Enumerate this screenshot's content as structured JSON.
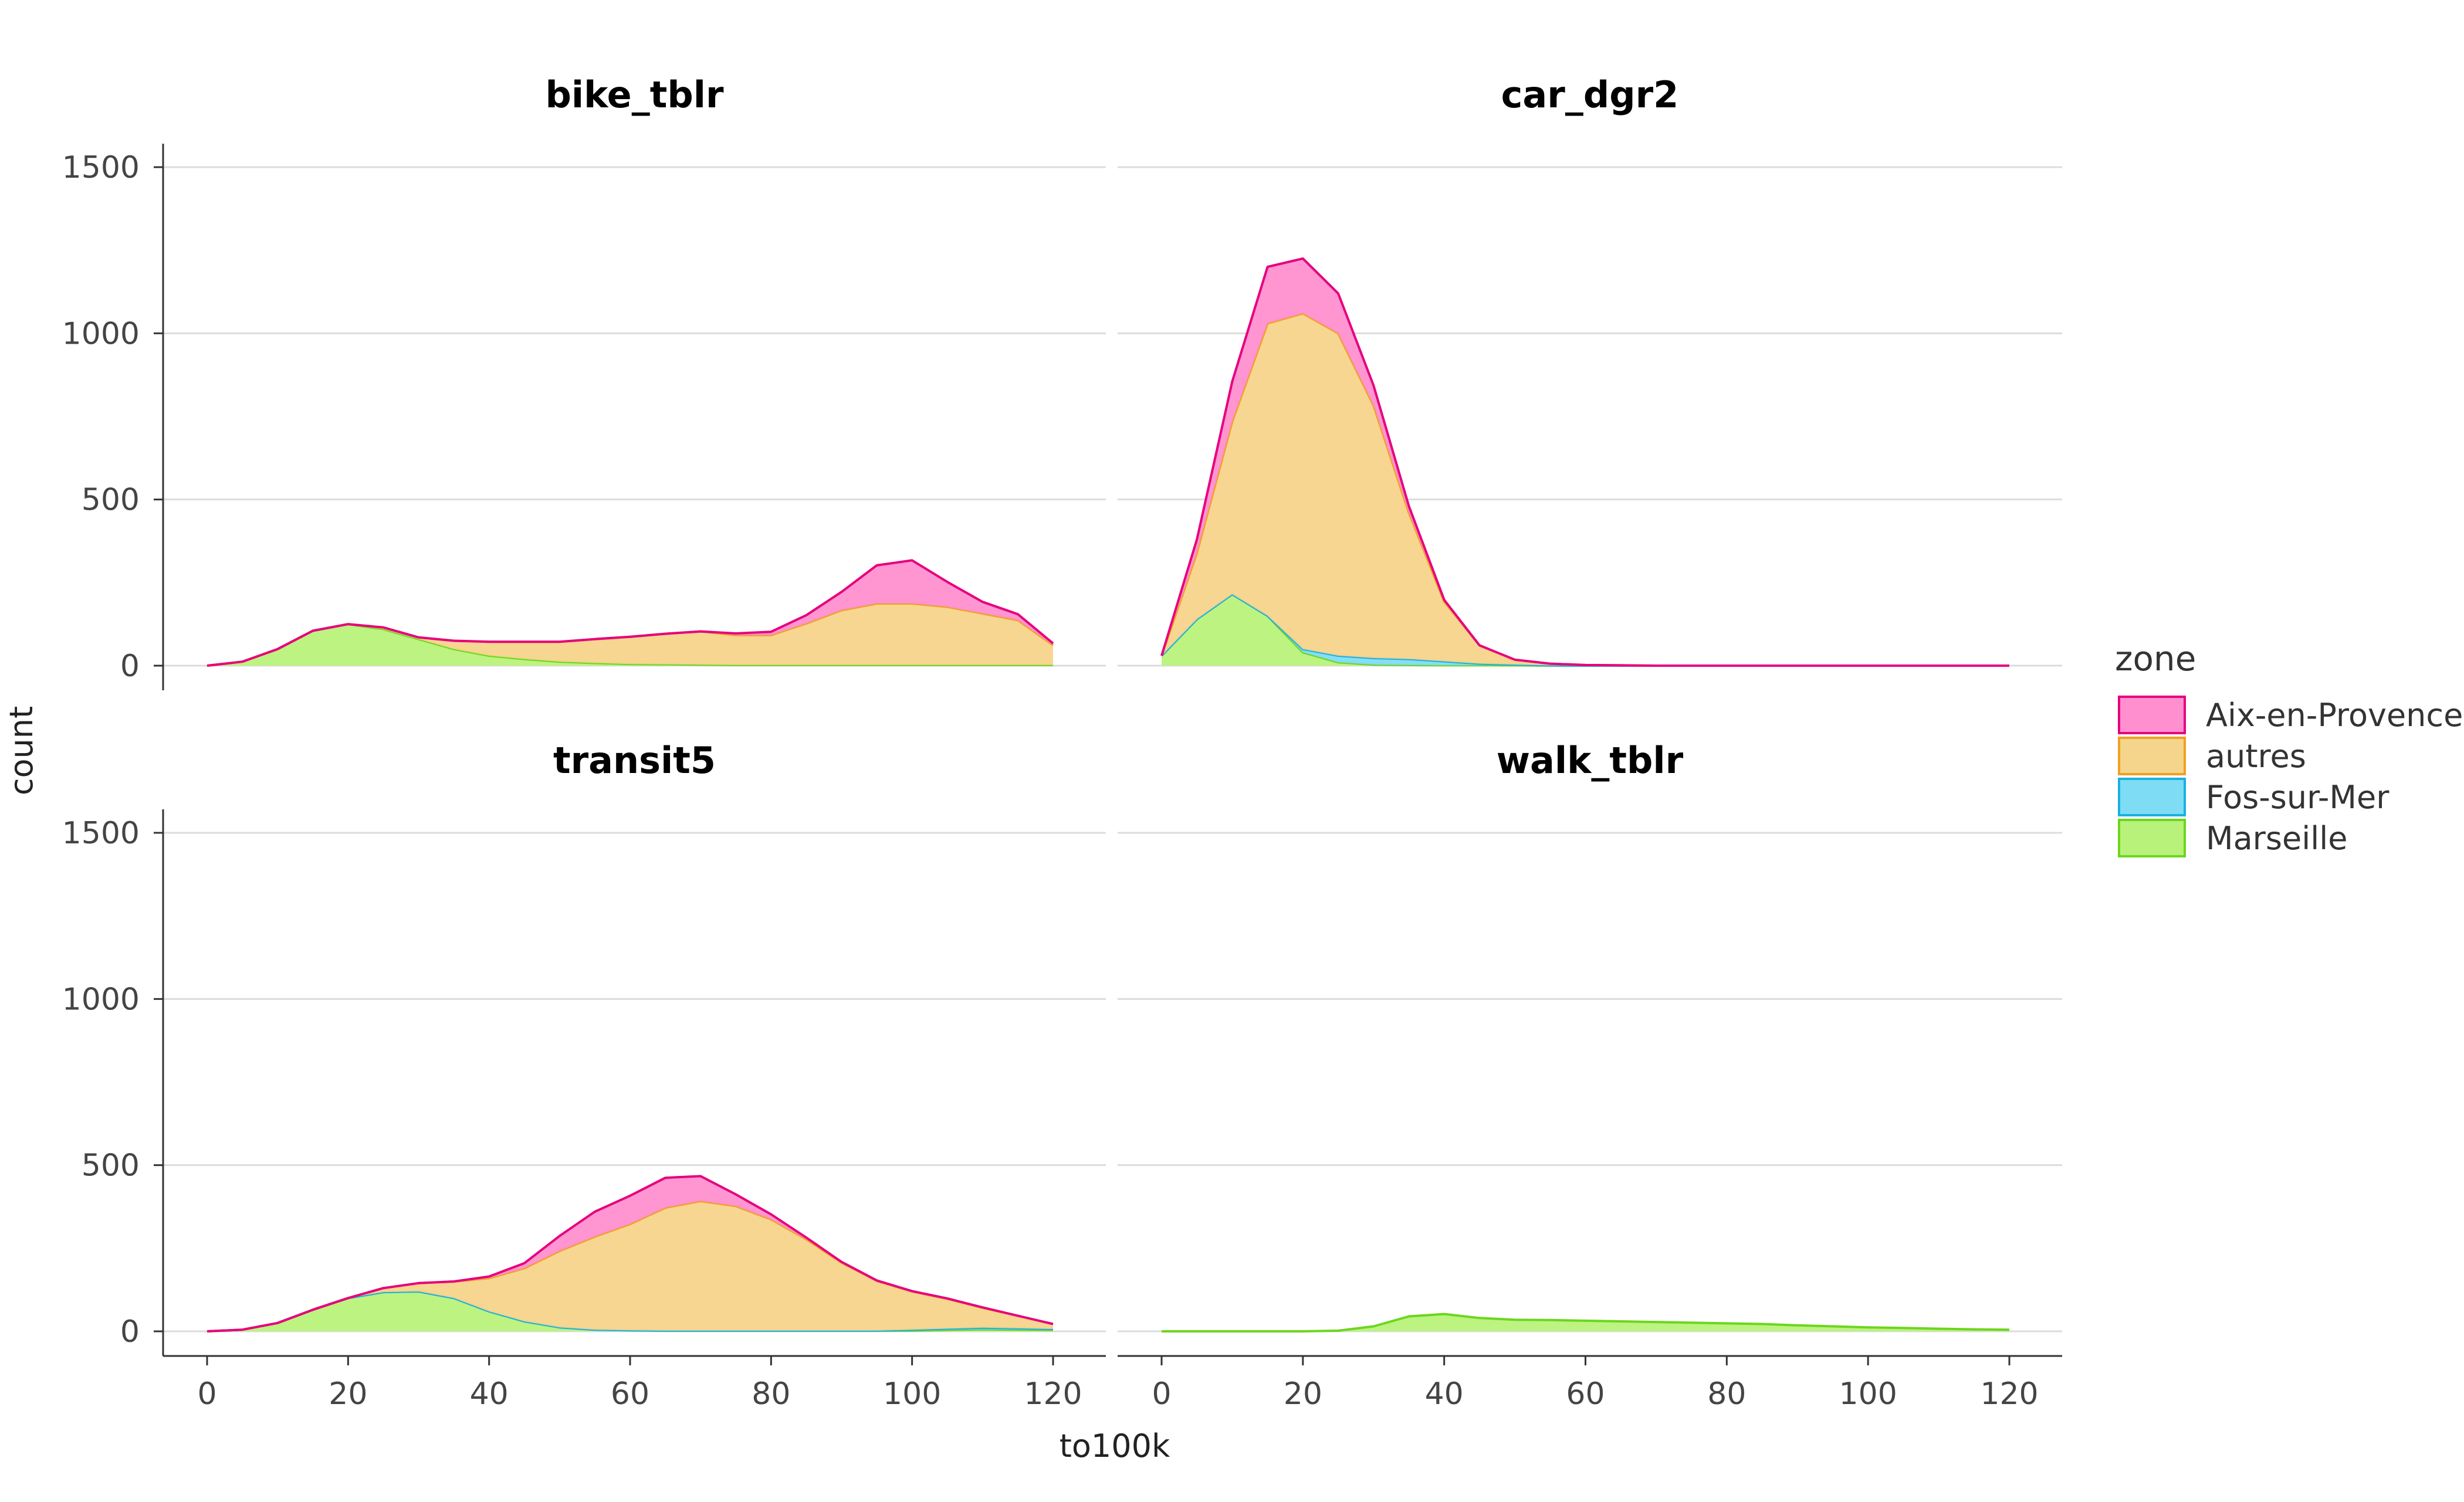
{
  "chart_data": {
    "type": "area",
    "stacked": true,
    "facet_by": "mode",
    "xlabel": "to100k",
    "ylabel": "count",
    "xlim": [
      0,
      120
    ],
    "ylim": [
      0,
      1500
    ],
    "x_ticks": [
      0,
      20,
      40,
      60,
      80,
      100,
      120
    ],
    "y_ticks": [
      0,
      500,
      1000,
      1500
    ],
    "grid": "horizontal",
    "legend": {
      "title": "zone",
      "position": "right",
      "entries": [
        "Aix-en-Provence",
        "autres",
        "Fos-sur-Mer",
        "Marseille"
      ]
    },
    "colors": {
      "Aix-en-Provence": {
        "fill": "#ff8fcf",
        "line": "#e6007e"
      },
      "autres": {
        "fill": "#f5d48b",
        "line": "#f0a020"
      },
      "Fos-sur-Mer": {
        "fill": "#7fdcf5",
        "line": "#1ab0e0"
      },
      "Marseille": {
        "fill": "#b8f27a",
        "line": "#6cd61e"
      }
    },
    "stack_order_bottom_to_top": [
      "Marseille",
      "Fos-sur-Mer",
      "autres",
      "Aix-en-Provence"
    ],
    "x": [
      0,
      5,
      10,
      15,
      20,
      25,
      30,
      35,
      40,
      45,
      50,
      55,
      60,
      65,
      70,
      75,
      80,
      85,
      90,
      95,
      100,
      105,
      110,
      115,
      120
    ],
    "panels": [
      {
        "title": "bike_tblr",
        "series": [
          {
            "name": "Marseille",
            "values": [
              0,
              12,
              50,
              105,
              125,
              110,
              80,
              50,
              30,
              20,
              12,
              8,
              5,
              4,
              3,
              2,
              2,
              2,
              2,
              2,
              2,
              2,
              2,
              2,
              2
            ]
          },
          {
            "name": "Fos-sur-Mer",
            "values": [
              0,
              0,
              0,
              0,
              0,
              0,
              0,
              0,
              0,
              0,
              0,
              0,
              0,
              0,
              0,
              0,
              0,
              0,
              0,
              0,
              0,
              0,
              0,
              0,
              0
            ]
          },
          {
            "name": "autres",
            "values": [
              0,
              0,
              0,
              0,
              0,
              5,
              5,
              25,
              42,
              52,
              60,
              72,
              82,
              92,
              100,
              90,
              90,
              125,
              165,
              185,
              185,
              175,
              155,
              135,
              60
            ]
          },
          {
            "name": "Aix-en-Provence",
            "values": [
              0,
              0,
              0,
              0,
              0,
              0,
              0,
              0,
              0,
              0,
              0,
              0,
              0,
              0,
              0,
              5,
              10,
              25,
              55,
              115,
              130,
              75,
              35,
              18,
              5
            ]
          }
        ]
      },
      {
        "title": "car_dgr2",
        "series": [
          {
            "name": "Marseille",
            "values": [
              30,
              140,
              215,
              150,
              40,
              10,
              3,
              2,
              1,
              1,
              1,
              0,
              0,
              0,
              0,
              0,
              0,
              0,
              0,
              0,
              0,
              0,
              0,
              0,
              0
            ]
          },
          {
            "name": "Fos-sur-Mer",
            "values": [
              0,
              0,
              0,
              0,
              10,
              20,
              20,
              18,
              12,
              5,
              2,
              1,
              0,
              0,
              0,
              0,
              0,
              0,
              0,
              0,
              0,
              0,
              0,
              0,
              0
            ]
          },
          {
            "name": "autres",
            "values": [
              0,
              200,
              520,
              880,
              1010,
              970,
              760,
              440,
              180,
              55,
              15,
              5,
              2,
              1,
              0,
              0,
              0,
              0,
              0,
              0,
              0,
              0,
              0,
              0,
              0
            ]
          },
          {
            "name": "Aix-en-Provence",
            "values": [
              0,
              40,
              120,
              170,
              165,
              120,
              60,
              20,
              5,
              0,
              0,
              0,
              0,
              0,
              0,
              0,
              0,
              0,
              0,
              0,
              0,
              0,
              0,
              0,
              0
            ]
          }
        ]
      },
      {
        "title": "transit5",
        "series": [
          {
            "name": "Marseille",
            "values": [
              0,
              5,
              25,
              65,
              100,
              118,
              120,
              100,
              60,
              30,
              12,
              5,
              3,
              2,
              2,
              2,
              2,
              2,
              2,
              2,
              2,
              4,
              6,
              5,
              4
            ]
          },
          {
            "name": "Fos-sur-Mer",
            "values": [
              0,
              0,
              0,
              0,
              0,
              0,
              0,
              0,
              0,
              0,
              0,
              0,
              0,
              0,
              0,
              0,
              0,
              0,
              0,
              0,
              3,
              4,
              5,
              4,
              3
            ]
          },
          {
            "name": "autres",
            "values": [
              0,
              0,
              0,
              0,
              0,
              12,
              25,
              50,
              100,
              160,
              230,
              280,
              320,
              370,
              390,
              375,
              335,
              275,
              205,
              150,
              115,
              90,
              60,
              38,
              15
            ]
          },
          {
            "name": "Aix-en-Provence",
            "values": [
              0,
              0,
              0,
              0,
              0,
              0,
              0,
              0,
              5,
              15,
              45,
              75,
              85,
              90,
              75,
              35,
              15,
              5,
              2,
              1,
              1,
              1,
              1,
              0,
              0
            ]
          }
        ]
      },
      {
        "title": "walk_tblr",
        "series": [
          {
            "name": "Marseille",
            "values": [
              0,
              0,
              0,
              0,
              0,
              2,
              15,
              45,
              52,
              40,
              35,
              34,
              32,
              30,
              28,
              26,
              24,
              22,
              18,
              15,
              12,
              10,
              8,
              6,
              5
            ]
          },
          {
            "name": "Fos-sur-Mer",
            "values": [
              0,
              0,
              0,
              0,
              0,
              0,
              0,
              0,
              0,
              0,
              0,
              0,
              0,
              0,
              0,
              0,
              0,
              0,
              0,
              0,
              0,
              0,
              0,
              0,
              0
            ]
          },
          {
            "name": "autres",
            "values": [
              0,
              0,
              0,
              0,
              0,
              0,
              0,
              0,
              0,
              0,
              0,
              0,
              0,
              0,
              0,
              0,
              0,
              0,
              0,
              0,
              0,
              0,
              0,
              0,
              0
            ]
          },
          {
            "name": "Aix-en-Provence",
            "values": [
              0,
              0,
              0,
              0,
              0,
              0,
              0,
              0,
              0,
              0,
              0,
              0,
              0,
              0,
              0,
              0,
              0,
              0,
              0,
              0,
              0,
              0,
              0,
              0,
              0
            ]
          }
        ]
      }
    ]
  }
}
